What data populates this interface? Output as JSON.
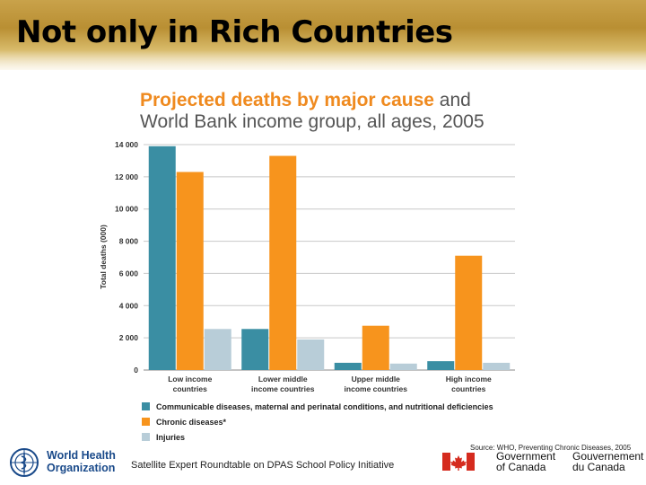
{
  "slide_title": "Not only in Rich Countries",
  "chart_title_highlight": "Projected deaths by major cause",
  "chart_title_rest1": " and",
  "chart_title_line2": "World Bank income group, all ages, 2005",
  "colors": {
    "communicable": "#3a8ea3",
    "chronic": "#f7941d",
    "injuries": "#b8cdd8",
    "title_highlight": "#ef8a1f"
  },
  "chart_data": {
    "type": "bar",
    "title": "Projected deaths by major cause and World Bank income group, all ages, 2005",
    "ylabel": "Total deaths (000)",
    "xlabel": "",
    "ylim": [
      0,
      14000
    ],
    "yticks": [
      0,
      2000,
      4000,
      6000,
      8000,
      10000,
      12000,
      14000
    ],
    "ytick_labels": [
      "0",
      "2 000",
      "4 000",
      "6 000",
      "8 000",
      "10 000",
      "12 000",
      "14 000"
    ],
    "grid": true,
    "categories": [
      [
        "Low income",
        "countries"
      ],
      [
        "Lower middle",
        "income countries"
      ],
      [
        "Upper middle",
        "income countries"
      ],
      [
        "High income",
        "countries"
      ]
    ],
    "series": [
      {
        "name": "Communicable diseases, maternal and perinatal conditions, and nutritional deficiencies",
        "values": [
          13900,
          2550,
          450,
          550
        ]
      },
      {
        "name": "Chronic diseases*",
        "values": [
          12300,
          13300,
          2750,
          7100
        ]
      },
      {
        "name": "Injuries",
        "values": [
          2550,
          1900,
          400,
          450
        ]
      }
    ],
    "legend": "bottom"
  },
  "source": "Source: WHO, Preventing Chronic Diseases, 2005",
  "footer": "Satellite Expert Roundtable on DPAS School Policy Initiative",
  "logos": {
    "who_line1": "World Health",
    "who_line2": "Organization",
    "goc_en_line1": "Government",
    "goc_en_line2": "of Canada",
    "goc_fr_line1": "Gouvernement",
    "goc_fr_line2": "du Canada"
  }
}
